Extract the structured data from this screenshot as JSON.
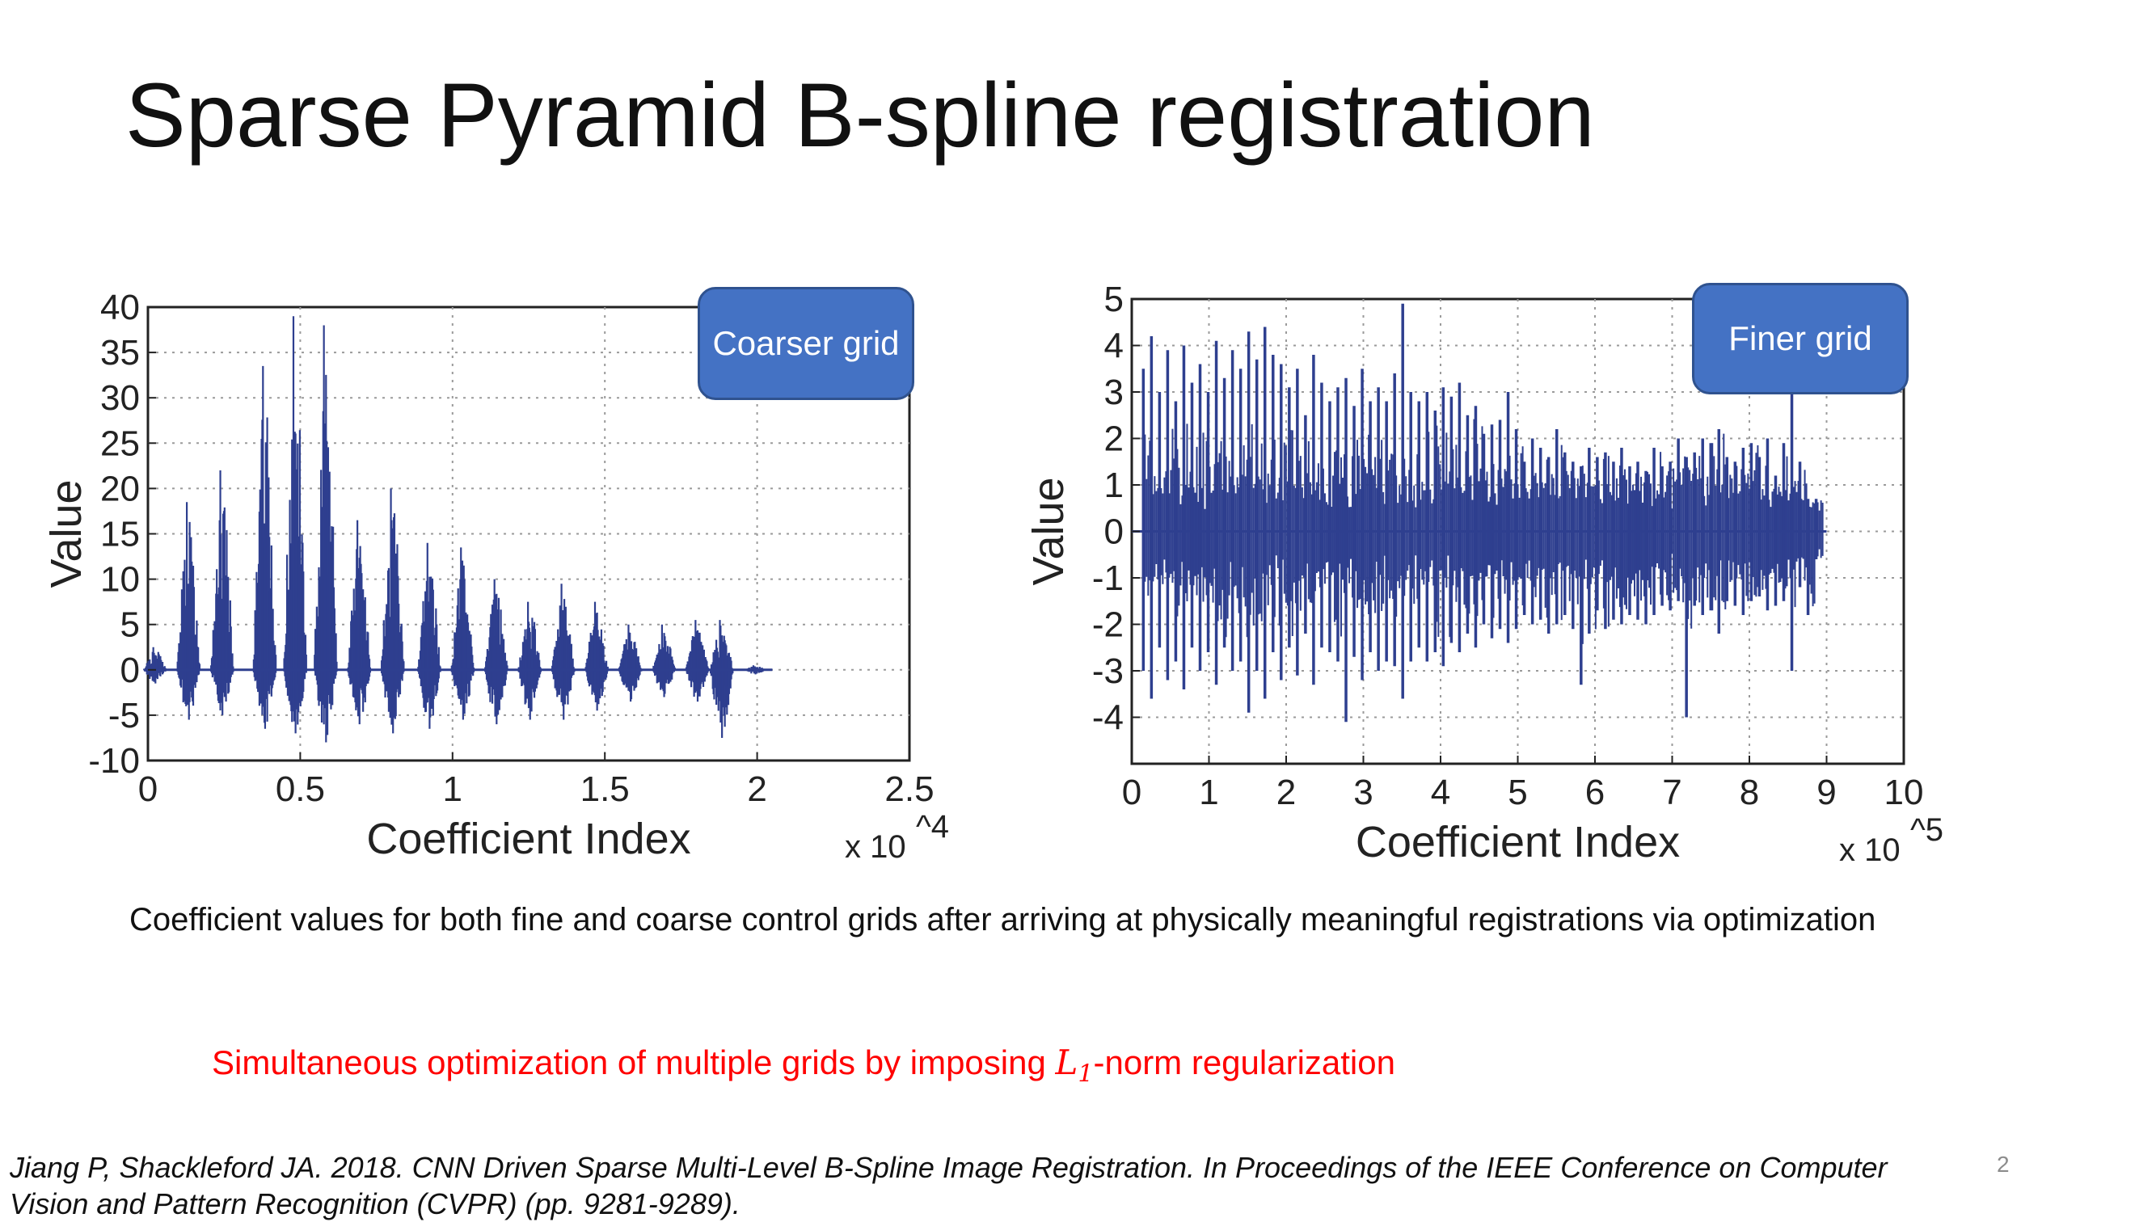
{
  "slide": {
    "title": "Sparse Pyramid B-spline registration",
    "caption": "Coefficient values for both fine and coarse control grids after arriving at physically meaningful registrations via optimization",
    "highlight_prefix": "Simultaneous optimization of multiple grids by imposing ",
    "highlight_math_base": "L",
    "highlight_math_sub": "1",
    "highlight_suffix": "-norm regularization",
    "citation": "Jiang P, Shackleford JA. 2018. CNN Driven Sparse Multi-Level B-Spline Image Registration. In Proceedings of the IEEE Conference on Computer Vision and Pattern Recognition (CVPR) (pp. 9281-9289).",
    "page_number": "2",
    "colors": {
      "series": "#2e3f8f",
      "callout_fill": "#4472c4",
      "highlight_text": "#ff0000"
    }
  },
  "chart_data": [
    {
      "type": "bar",
      "callout": "Coarser grid",
      "xlabel": "Coefficient Index",
      "ylabel": "Value",
      "x_exponent_prefix": "x 10",
      "x_exponent": "^4",
      "xlim": [
        0,
        2.5
      ],
      "ylim": [
        -10,
        40
      ],
      "xticks": [
        "0",
        "0.5",
        "1",
        "1.5",
        "2",
        "2.5"
      ],
      "yticks": [
        "40",
        "35",
        "30",
        "25",
        "20",
        "15",
        "10",
        "5",
        "0",
        "-5",
        "-10"
      ],
      "grid": true,
      "x_end": 2.05,
      "clusters": [
        {
          "x": 0.02,
          "max": 2.5,
          "min": -1.5
        },
        {
          "x": 0.13,
          "max": 18.5,
          "min": -5.5
        },
        {
          "x": 0.24,
          "max": 22,
          "min": -5
        },
        {
          "x": 0.38,
          "max": 33.5,
          "min": -6.5
        },
        {
          "x": 0.48,
          "max": 39,
          "min": -7
        },
        {
          "x": 0.58,
          "max": 38,
          "min": -8
        },
        {
          "x": 0.69,
          "max": 16.5,
          "min": -6
        },
        {
          "x": 0.8,
          "max": 20,
          "min": -7
        },
        {
          "x": 0.92,
          "max": 14,
          "min": -6.5
        },
        {
          "x": 1.03,
          "max": 13.5,
          "min": -5.5
        },
        {
          "x": 1.14,
          "max": 10,
          "min": -6
        },
        {
          "x": 1.25,
          "max": 7.5,
          "min": -5.5
        },
        {
          "x": 1.36,
          "max": 9.5,
          "min": -5.5
        },
        {
          "x": 1.47,
          "max": 7.5,
          "min": -4.5
        },
        {
          "x": 1.58,
          "max": 5,
          "min": -3.5
        },
        {
          "x": 1.69,
          "max": 5,
          "min": -3
        },
        {
          "x": 1.8,
          "max": 5.5,
          "min": -3.5
        },
        {
          "x": 1.88,
          "max": 5.5,
          "min": -7.5
        },
        {
          "x": 1.99,
          "max": 0.5,
          "min": -0.5
        }
      ]
    },
    {
      "type": "bar",
      "callout": "Finer grid",
      "xlabel": "Coefficient Index",
      "ylabel": "Value",
      "x_exponent_prefix": "x 10",
      "x_exponent": "^5",
      "xlim": [
        0,
        10
      ],
      "ylim": [
        -5,
        5
      ],
      "xticks": [
        "0",
        "1",
        "2",
        "3",
        "4",
        "5",
        "6",
        "7",
        "8",
        "9",
        "10"
      ],
      "yticks": [
        "5",
        "4",
        "3",
        "2",
        "1",
        "0",
        "-1",
        "-2",
        "-3",
        "-4"
      ],
      "grid": true,
      "x_end": 9.0,
      "spike_spacing": 0.105,
      "spike_start": 0.15,
      "spikes_max": [
        3.5,
        4.2,
        3.0,
        3.9,
        2.8,
        4.0,
        3.2,
        3.6,
        3.0,
        4.1,
        3.3,
        3.9,
        3.5,
        4.3,
        3.7,
        4.4,
        3.8,
        3.6,
        3.1,
        3.5,
        2.5,
        3.8,
        3.2,
        2.8,
        3.1,
        3.3,
        2.7,
        3.5,
        2.8,
        3.1,
        2.8,
        3.4,
        4.9,
        3.0,
        2.8,
        3.0,
        2.6,
        3.1,
        2.9,
        3.2,
        2.5,
        2.7,
        2.1,
        2.3,
        2.4,
        3.0,
        2.2,
        1.5,
        2.0,
        1.8,
        1.6,
        2.2,
        1.7,
        1.5,
        1.4,
        1.8,
        1.6,
        1.7,
        1.5,
        1.8,
        1.4,
        1.5,
        1.3,
        1.8,
        1.4,
        1.5,
        2.0,
        1.6,
        1.7,
        2.0,
        1.9,
        2.2,
        1.6,
        1.5,
        1.8,
        1.9,
        1.6,
        2.0,
        1.2,
        1.9,
        3.0,
        1.5,
        0.7,
        0.7
      ],
      "spikes_min": [
        -3.0,
        -3.6,
        -2.5,
        -3.2,
        -2.8,
        -3.4,
        -2.5,
        -3.0,
        -2.6,
        -3.3,
        -2.5,
        -3.0,
        -2.8,
        -3.9,
        -3.0,
        -3.6,
        -2.6,
        -3.2,
        -2.5,
        -3.1,
        -2.2,
        -3.3,
        -2.5,
        -2.6,
        -2.8,
        -4.1,
        -2.7,
        -3.2,
        -2.6,
        -3.0,
        -2.8,
        -2.9,
        -3.6,
        -2.8,
        -2.5,
        -2.8,
        -2.6,
        -2.9,
        -2.4,
        -2.6,
        -2.2,
        -2.5,
        -2.0,
        -2.3,
        -2.1,
        -2.4,
        -2.1,
        -1.8,
        -2.0,
        -1.9,
        -2.2,
        -2.0,
        -1.8,
        -2.1,
        -3.3,
        -2.2,
        -1.7,
        -2.1,
        -1.9,
        -2.0,
        -1.8,
        -1.9,
        -2.0,
        -1.8,
        -1.6,
        -1.7,
        -1.5,
        -4.0,
        -1.6,
        -1.8,
        -1.7,
        -2.2,
        -1.5,
        -1.6,
        -1.8,
        -1.5,
        -1.4,
        -1.7,
        -1.6,
        -1.5,
        -3.0,
        -1.2,
        -1.8,
        -0.6
      ]
    }
  ]
}
